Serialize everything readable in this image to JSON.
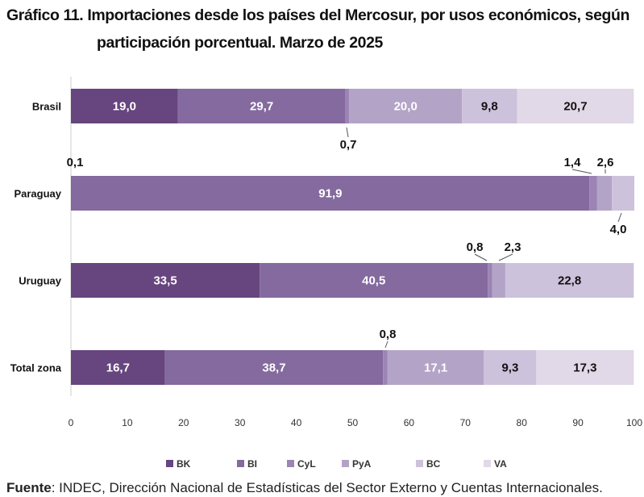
{
  "title": {
    "line1": "Gráfico 11. Importaciones desde los países del Mercosur, por usos económicos, según",
    "line2": "participación porcentual. Marzo de 2025"
  },
  "source": {
    "label": "Fuente",
    "text": ": INDEC, Dirección Nacional de Estadísticas del Sector Externo y Cuentas Internacionales."
  },
  "colors": {
    "BK": "#67457f",
    "BI": "#846a9e",
    "CyL": "#9c84b4",
    "PyA": "#b3a4c7",
    "BC": "#cdc2db",
    "VA": "#e1d9e7"
  },
  "chart_data": {
    "type": "bar",
    "orientation": "horizontal",
    "stacked": true,
    "categories": [
      "Brasil",
      "Paraguay",
      "Uruguay",
      "Total zona"
    ],
    "series": [
      {
        "name": "BK",
        "values": [
          19.0,
          0.1,
          33.5,
          16.7
        ]
      },
      {
        "name": "BI",
        "values": [
          29.7,
          91.9,
          40.5,
          38.7
        ]
      },
      {
        "name": "CyL",
        "values": [
          0.7,
          1.4,
          0.8,
          0.8
        ]
      },
      {
        "name": "PyA",
        "values": [
          20.0,
          2.6,
          2.3,
          17.1
        ]
      },
      {
        "name": "BC",
        "values": [
          9.8,
          4.0,
          22.8,
          9.3
        ]
      },
      {
        "name": "VA",
        "values": [
          20.7,
          0.0,
          0.0,
          17.3
        ]
      }
    ],
    "labels": [
      [
        "19,0",
        "29,7",
        "0,7",
        "20,0",
        "9,8",
        "20,7"
      ],
      [
        "0,1",
        "91,9",
        "1,4",
        "2,6",
        "4,0",
        ""
      ],
      [
        "33,5",
        "40,5",
        "0,8",
        "2,3",
        "22,8",
        ""
      ],
      [
        "16,7",
        "38,7",
        "0,8",
        "17,1",
        "9,3",
        "17,3"
      ]
    ],
    "xlim": [
      0,
      100
    ],
    "xticks": [
      "0",
      "10",
      "20",
      "30",
      "40",
      "50",
      "60",
      "70",
      "80",
      "90",
      "100"
    ],
    "legend": [
      "BK",
      "BI",
      "CyL",
      "PyA",
      "BC",
      "VA"
    ],
    "legend_position": "bottom",
    "grid": false
  }
}
